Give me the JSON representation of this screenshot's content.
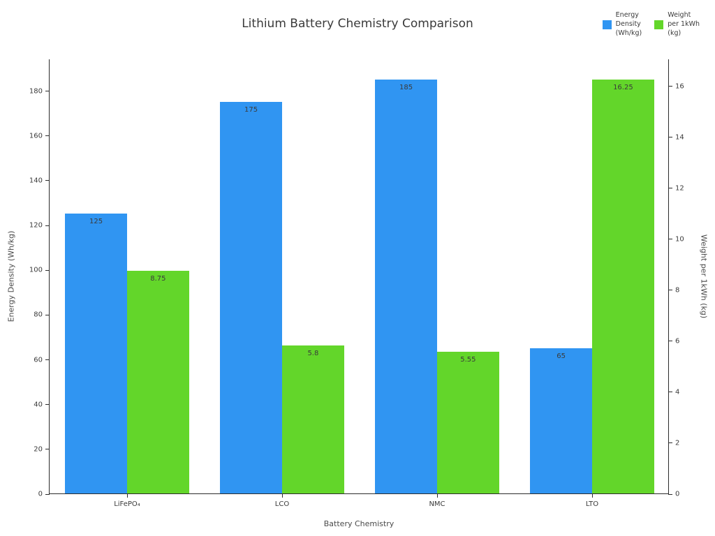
{
  "chart_data": {
    "type": "bar",
    "title": "Lithium Battery Chemistry Comparison",
    "xlabel": "Battery Chemistry",
    "ylabel_left": "Energy Density (Wh/kg)",
    "ylabel_right": "Weight per 1kWh (kg)",
    "categories": [
      "LiFePO₄",
      "LCO",
      "NMC",
      "LTO"
    ],
    "series": [
      {
        "name": "Energy Density (Wh/kg)",
        "axis": "left",
        "color": "#3095f2",
        "values": [
          125,
          175,
          185,
          65
        ],
        "labels": [
          "125",
          "175",
          "185",
          "65"
        ]
      },
      {
        "name": "Weight per 1kWh (kg)",
        "axis": "right",
        "color": "#63d62a",
        "values": [
          8.75,
          5.8,
          5.55,
          16.25
        ],
        "labels": [
          "8.75",
          "5.8",
          "5.55",
          "16.25"
        ]
      }
    ],
    "left_axis": {
      "ticks": [
        0,
        20,
        40,
        60,
        80,
        100,
        120,
        140,
        160,
        180
      ],
      "max": 194.25
    },
    "right_axis": {
      "ticks": [
        0,
        2,
        4,
        6,
        8,
        10,
        12,
        14,
        16
      ],
      "max": 17.0625
    },
    "legend": [
      {
        "label_lines": [
          "Energy",
          "Density",
          "(Wh/kg)"
        ],
        "color": "#3095f2"
      },
      {
        "label_lines": [
          "Weight",
          "per 1kWh",
          "(kg)"
        ],
        "color": "#63d62a"
      }
    ],
    "grid": false,
    "legend_position": "top-right"
  }
}
